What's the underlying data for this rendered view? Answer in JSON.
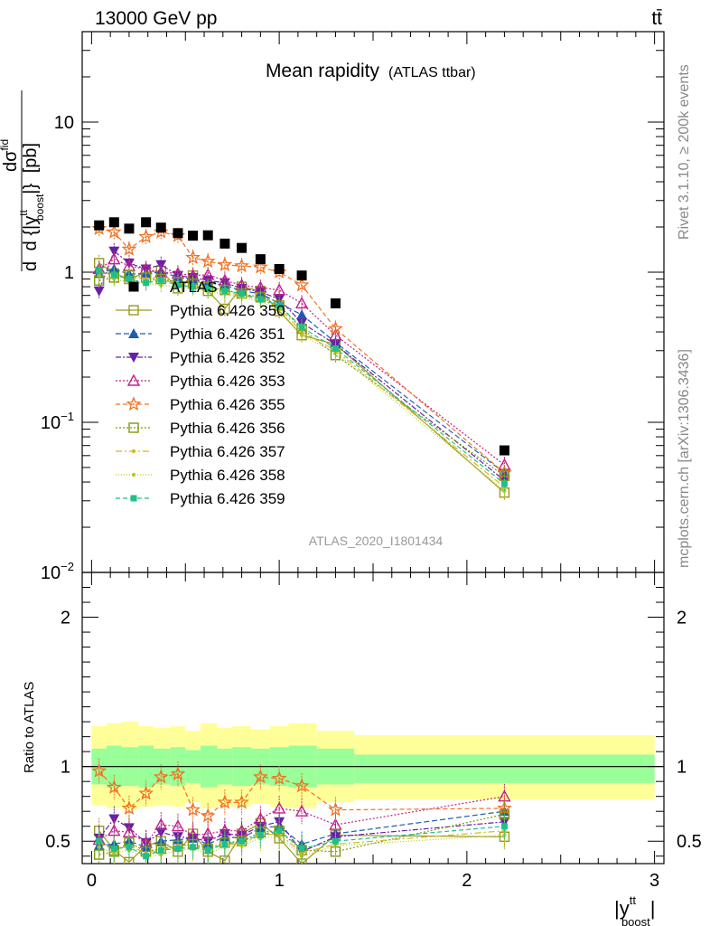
{
  "header": {
    "energy": "13000 GeV pp",
    "process": "tt̄"
  },
  "side_labels": {
    "rivet": "Rivet 3.1.10, ≥ 200k events",
    "mcplots": "mcplots.cern.ch [arXiv:1306.3436]"
  },
  "chart_data": {
    "type": "scatter",
    "title": "Mean rapidity",
    "subtitle": "(ATLAS ttbar)",
    "analysis": "ATLAS_2020_I1801434",
    "ylabel": "dσ/d |y boost tt| [pb]",
    "ylabel_parts": {
      "d1": "d",
      "d2": "d",
      "sigma": "dσ",
      "sigma_sup": "fid",
      "denom": "d {|y",
      "denom_sup": "tt",
      "denom_sub": "boost",
      "denom_close": "|}",
      "unit": "[pb]"
    },
    "xlabel_parts": {
      "y": "|y",
      "sup": "tt",
      "sub": "boost",
      "close": "|"
    },
    "xlim": [
      -0.05,
      3.05
    ],
    "ylim": [
      0.01,
      40
    ],
    "yscale": "log",
    "x_ticks": [
      0,
      1,
      2,
      3
    ],
    "x_tick_labels": [
      "0",
      "1",
      "2",
      "3"
    ],
    "y_ticks": [
      10,
      1,
      0.1,
      0.01
    ],
    "y_tick_labels": [
      {
        "base": "10",
        "sup": ""
      },
      {
        "base": "1",
        "sup": ""
      },
      {
        "base": "10",
        "sup": "−1"
      },
      {
        "base": "10",
        "sup": "−2"
      }
    ],
    "x": [
      0.04,
      0.12,
      0.2,
      0.29,
      0.37,
      0.46,
      0.54,
      0.62,
      0.71,
      0.8,
      0.9,
      1.0,
      1.12,
      1.3,
      2.2
    ],
    "data_series": {
      "name": "ATLAS",
      "color": "#000000",
      "values": [
        2.05,
        2.15,
        1.95,
        2.15,
        1.98,
        1.82,
        1.75,
        1.76,
        1.55,
        1.45,
        1.22,
        1.05,
        0.95,
        0.62,
        0.065
      ]
    },
    "series": [
      {
        "name": "Pythia 6.426 350",
        "color": "#9a9a20",
        "dash": "",
        "marker": "open-square",
        "values": [
          1.15,
          0.98,
          0.9,
          1.0,
          1.02,
          0.78,
          0.95,
          0.75,
          0.57,
          0.8,
          0.75,
          0.55,
          0.38,
          0.33,
          0.034
        ]
      },
      {
        "name": "Pythia 6.426 351",
        "color": "#1a5fb4",
        "dash": "6,3",
        "marker": "triangle-up",
        "values": [
          0.98,
          1.05,
          0.97,
          0.98,
          1.0,
          0.93,
          0.9,
          0.85,
          0.82,
          0.75,
          0.72,
          0.62,
          0.52,
          0.34,
          0.046
        ]
      },
      {
        "name": "Pythia 6.426 352",
        "color": "#6a1fa8",
        "dash": "6,2,2,2",
        "marker": "triangle-down",
        "values": [
          0.75,
          1.38,
          1.15,
          1.05,
          1.12,
          0.95,
          0.92,
          0.88,
          0.85,
          0.78,
          0.74,
          0.66,
          0.46,
          0.33,
          0.041
        ]
      },
      {
        "name": "Pythia 6.426 353",
        "color": "#c0228a",
        "dash": "2,2",
        "marker": "open-triangle-up",
        "values": [
          1.05,
          1.22,
          1.1,
          1.05,
          1.0,
          0.98,
          0.95,
          0.96,
          0.88,
          0.82,
          0.79,
          0.76,
          0.62,
          0.38,
          0.052
        ]
      },
      {
        "name": "Pythia 6.426 355",
        "color": "#f07020",
        "dash": "5,3",
        "marker": "open-star",
        "values": [
          1.95,
          1.85,
          1.42,
          1.72,
          1.85,
          1.75,
          1.25,
          1.18,
          1.12,
          1.1,
          1.08,
          1.0,
          0.82,
          0.42,
          0.046
        ]
      },
      {
        "name": "Pythia 6.426 356",
        "color": "#7d9a10",
        "dash": "2,2",
        "marker": "open-square",
        "values": [
          0.88,
          0.92,
          0.95,
          0.92,
          0.9,
          0.86,
          0.84,
          0.8,
          0.76,
          0.72,
          0.68,
          0.6,
          0.42,
          0.28,
          0.044
        ]
      },
      {
        "name": "Pythia 6.426 357",
        "color": "#d8b81a",
        "dash": "7,3,2,3",
        "marker": "dot",
        "values": [
          1.0,
          0.95,
          0.92,
          0.9,
          0.88,
          0.85,
          0.82,
          0.78,
          0.74,
          0.7,
          0.66,
          0.58,
          0.4,
          0.3,
          0.037
        ]
      },
      {
        "name": "Pythia 6.426 358",
        "color": "#bcc820",
        "dash": "1,2",
        "marker": "dot",
        "values": [
          0.95,
          0.9,
          0.86,
          0.84,
          0.82,
          0.8,
          0.78,
          0.74,
          0.72,
          0.68,
          0.64,
          0.56,
          0.38,
          0.29,
          0.035
        ]
      },
      {
        "name": "Pythia 6.426 359",
        "color": "#1ec08a",
        "dash": "5,3",
        "marker": "filled-square",
        "values": [
          1.02,
          0.96,
          0.9,
          0.85,
          0.88,
          0.82,
          0.8,
          0.78,
          0.75,
          0.72,
          0.66,
          0.6,
          0.43,
          0.31,
          0.039
        ]
      }
    ],
    "ratio": {
      "ylabel": "Ratio to ATLAS",
      "ylim": [
        0.35,
        2.3
      ],
      "ytick_values": [
        0.5,
        1,
        2
      ],
      "ytick_labels": [
        "0.5",
        "1",
        "2"
      ],
      "band_edges": [
        0.0,
        0.08,
        0.16,
        0.25,
        0.33,
        0.42,
        0.5,
        0.58,
        0.67,
        0.75,
        0.85,
        0.95,
        1.05,
        1.2,
        1.4,
        3.0
      ],
      "inner_band_low": [
        0.88,
        0.86,
        0.87,
        0.86,
        0.88,
        0.87,
        0.89,
        0.86,
        0.88,
        0.87,
        0.88,
        0.87,
        0.86,
        0.88,
        0.89
      ],
      "inner_band_high": [
        1.12,
        1.14,
        1.13,
        1.14,
        1.12,
        1.13,
        1.11,
        1.14,
        1.12,
        1.13,
        1.12,
        1.13,
        1.14,
        1.12,
        1.08
      ],
      "outer_band_low": [
        0.74,
        0.72,
        0.71,
        0.73,
        0.74,
        0.73,
        0.76,
        0.72,
        0.74,
        0.73,
        0.75,
        0.73,
        0.72,
        0.76,
        0.78
      ],
      "outer_band_high": [
        1.27,
        1.29,
        1.3,
        1.27,
        1.26,
        1.27,
        1.24,
        1.29,
        1.26,
        1.27,
        1.25,
        1.27,
        1.29,
        1.24,
        1.21
      ],
      "series": [
        [
          0.57,
          0.44,
          0.36,
          0.47,
          0.5,
          0.43,
          0.55,
          0.43,
          0.37,
          0.55,
          0.62,
          0.52,
          0.35,
          0.54,
          0.53
        ],
        [
          0.47,
          0.48,
          0.5,
          0.46,
          0.5,
          0.51,
          0.52,
          0.48,
          0.53,
          0.52,
          0.59,
          0.6,
          0.48,
          0.55,
          0.7
        ],
        [
          0.52,
          0.65,
          0.59,
          0.49,
          0.56,
          0.53,
          0.52,
          0.5,
          0.55,
          0.54,
          0.6,
          0.63,
          0.43,
          0.53,
          0.63
        ],
        [
          0.51,
          0.57,
          0.56,
          0.49,
          0.61,
          0.6,
          0.54,
          0.55,
          0.57,
          0.57,
          0.65,
          0.72,
          0.7,
          0.61,
          0.8
        ],
        [
          0.97,
          0.86,
          0.72,
          0.82,
          0.93,
          0.95,
          0.71,
          0.67,
          0.76,
          0.76,
          0.93,
          0.92,
          0.87,
          0.71,
          0.72
        ],
        [
          0.41,
          0.43,
          0.49,
          0.43,
          0.45,
          0.47,
          0.48,
          0.45,
          0.49,
          0.5,
          0.56,
          0.57,
          0.44,
          0.43,
          0.68
        ],
        [
          0.49,
          0.44,
          0.47,
          0.42,
          0.44,
          0.47,
          0.47,
          0.44,
          0.48,
          0.48,
          0.54,
          0.55,
          0.42,
          0.48,
          0.57
        ],
        [
          0.46,
          0.42,
          0.44,
          0.39,
          0.41,
          0.44,
          0.45,
          0.42,
          0.46,
          0.47,
          0.52,
          0.53,
          0.4,
          0.47,
          0.54
        ],
        [
          0.5,
          0.45,
          0.46,
          0.4,
          0.44,
          0.45,
          0.46,
          0.44,
          0.48,
          0.5,
          0.54,
          0.57,
          0.45,
          0.5,
          0.6
        ]
      ]
    },
    "ratio_xlabel_ticks": [
      "0",
      "1",
      "2",
      "3"
    ]
  }
}
